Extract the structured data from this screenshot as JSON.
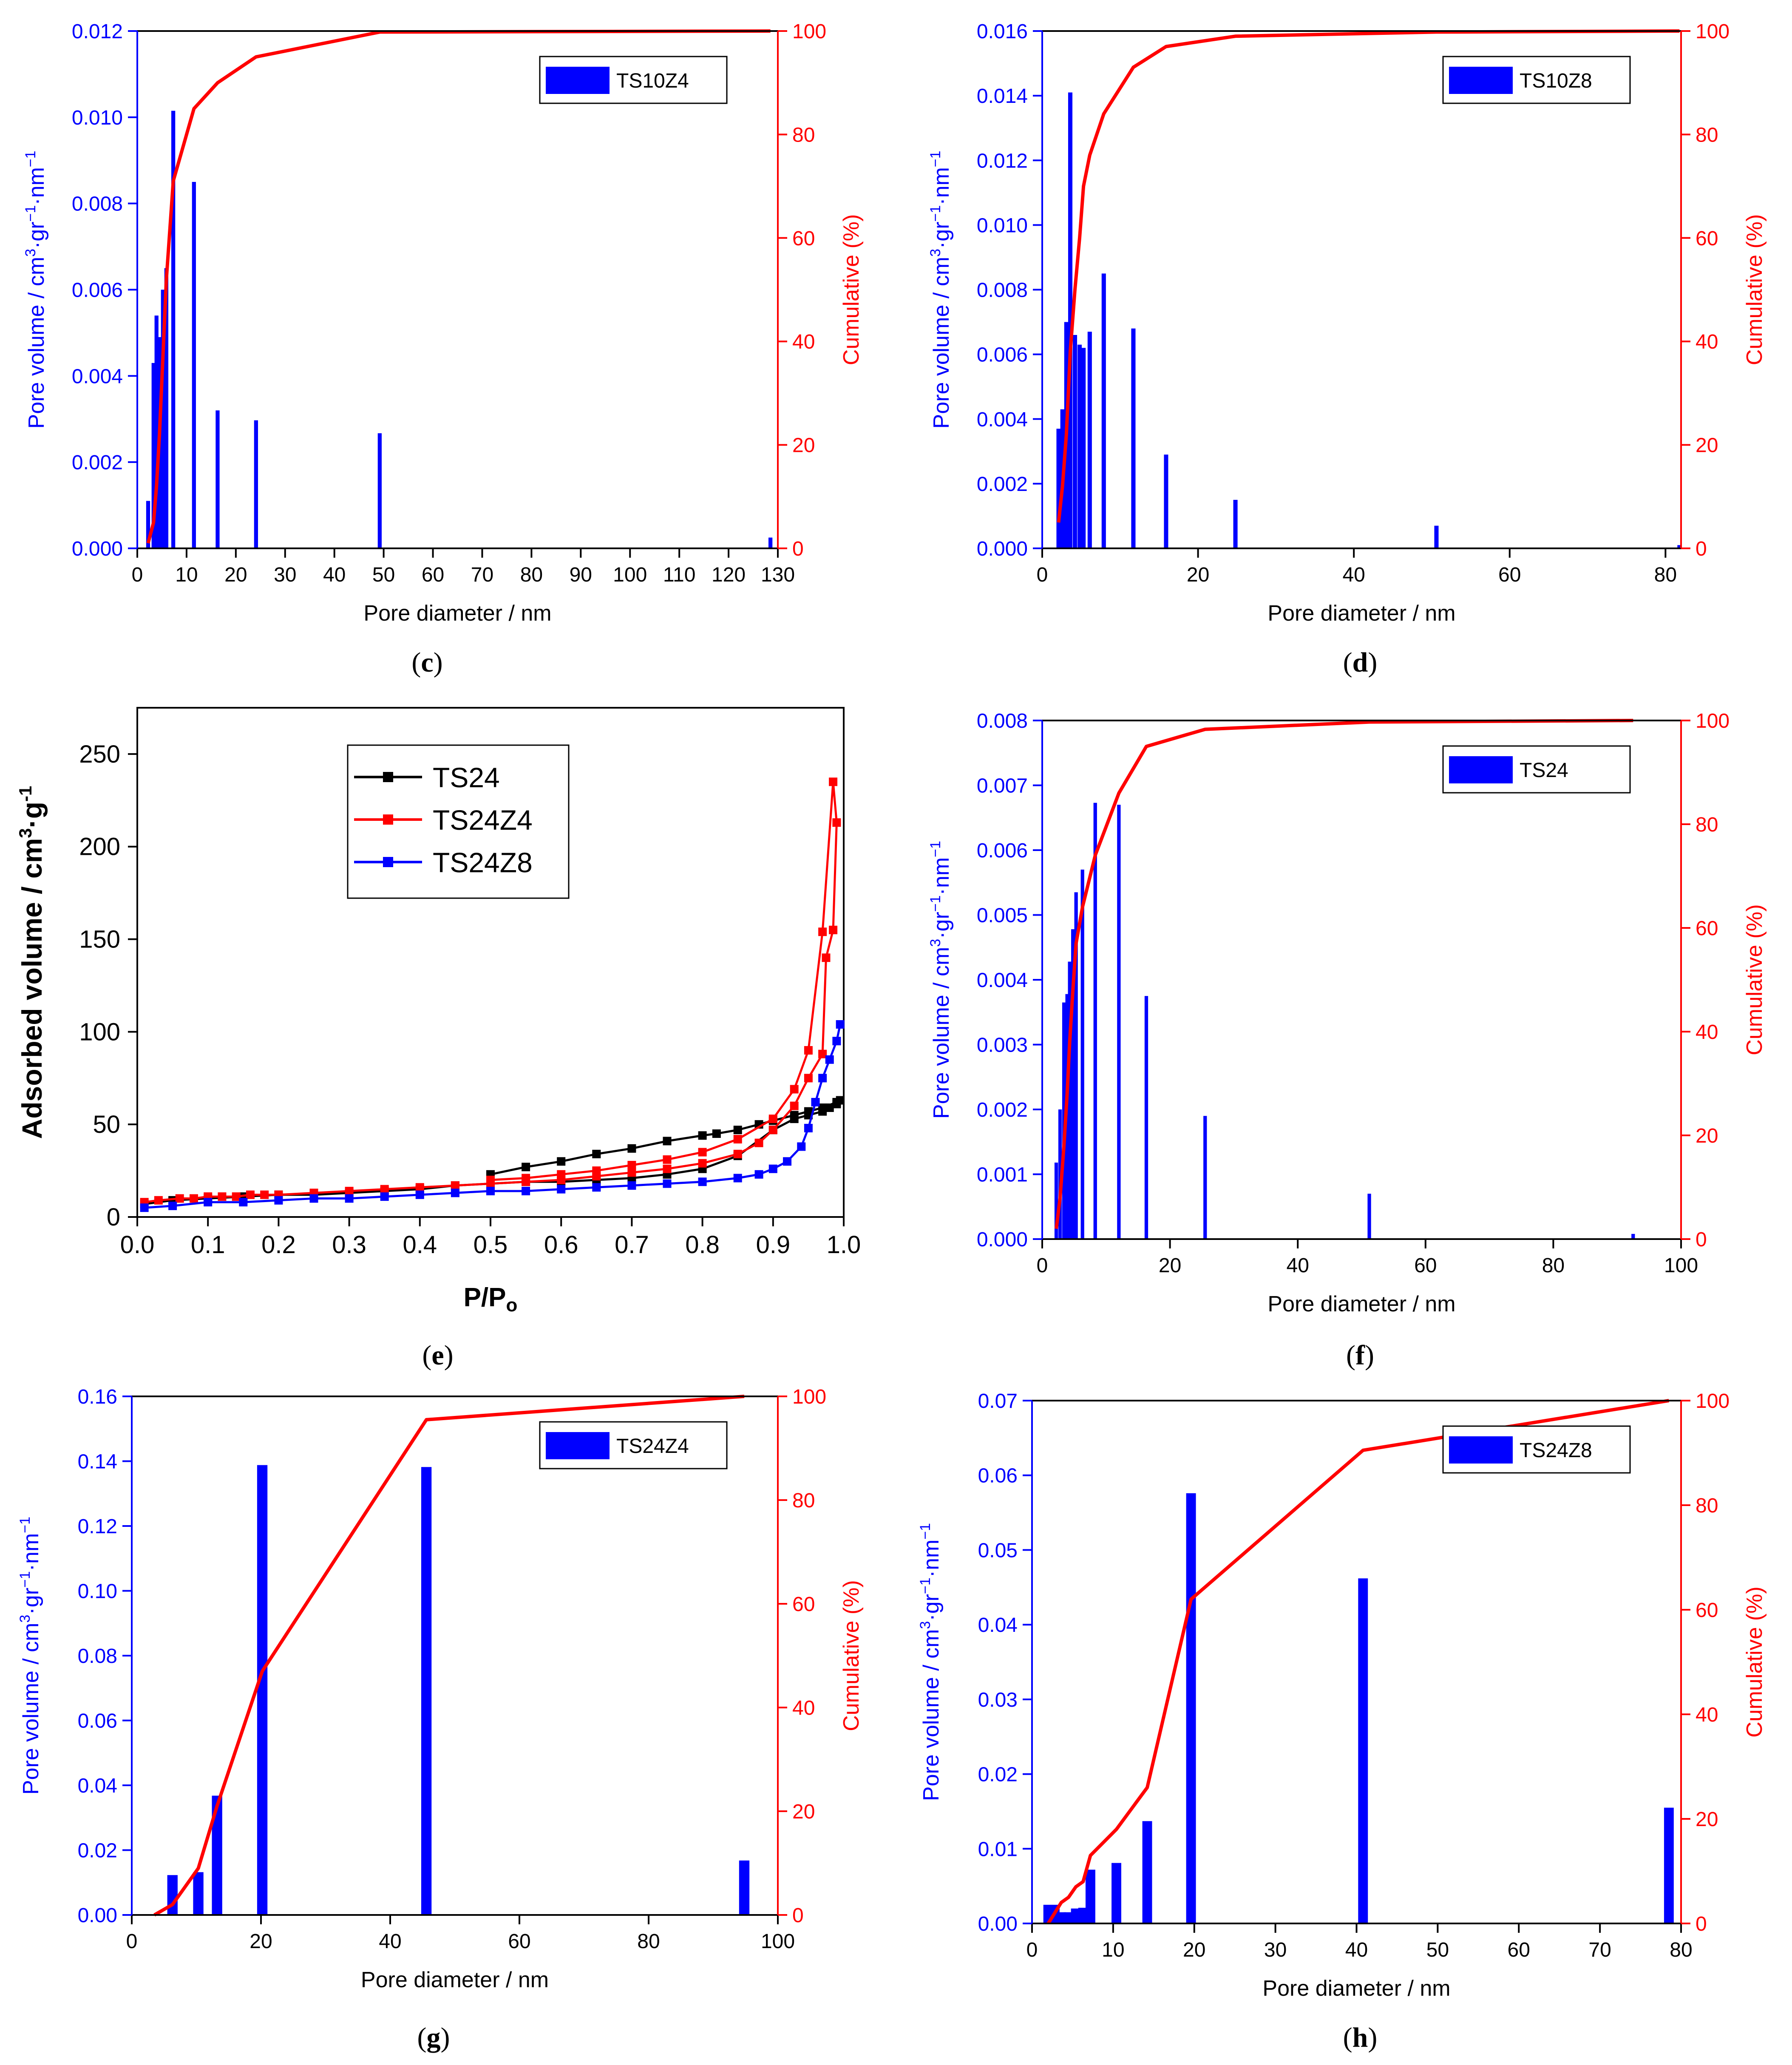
{
  "colors": {
    "bar": "#0000ff",
    "cumulative": "#ff0000",
    "axis": "#000000",
    "TS24": "#000000",
    "TS24Z4": "#ff0000",
    "TS24Z8": "#0000ff"
  },
  "chart_data": [
    {
      "id": "c",
      "type": "bar+line",
      "panel_label": "c",
      "legend": "TS10Z4",
      "xlabel": "Pore diameter / nm",
      "ylabel": {
        "base": "Pore volume / cm",
        "sup1": "3",
        "mid": "·gr",
        "sup2": "−1",
        "mid2": "·nm",
        "sup3": "−1"
      },
      "y2label": "Cumulative (%)",
      "xlim": [
        0,
        130
      ],
      "ylim": [
        0,
        0.012
      ],
      "y2lim": [
        0,
        100
      ],
      "xticks": [
        0,
        10,
        20,
        30,
        40,
        50,
        60,
        70,
        80,
        90,
        100,
        110,
        120,
        130
      ],
      "yticks": [
        0,
        0.002,
        0.004,
        0.006,
        0.008,
        0.01,
        0.012
      ],
      "ytick_labels": [
        "0.000",
        "0.002",
        "0.004",
        "0.006",
        "0.008",
        "0.010",
        "0.012"
      ],
      "y2ticks": [
        0,
        20,
        40,
        60,
        80,
        100
      ],
      "bar_width": 0.8,
      "bars": {
        "x": [
          2.2,
          3.3,
          3.9,
          4.5,
          5.2,
          5.9,
          7.3,
          11.5,
          16.3,
          24.1,
          49.2,
          128.5
        ],
        "values": [
          0.0011,
          0.0043,
          0.0054,
          0.0049,
          0.006,
          0.0065,
          0.01015,
          0.0085,
          0.0032,
          0.00297,
          0.00267,
          0.00025
        ]
      },
      "cumulative": {
        "x": [
          2.2,
          3.3,
          3.9,
          4.5,
          5.2,
          5.9,
          7.3,
          11.5,
          16.3,
          24.1,
          49.2,
          128.5
        ],
        "values": [
          1,
          5,
          12,
          22,
          37,
          52,
          71,
          85,
          90,
          95,
          99.8,
          100
        ]
      }
    },
    {
      "id": "d",
      "type": "bar+line",
      "panel_label": "d",
      "legend": "TS10Z8",
      "xlabel": "Pore diameter / nm",
      "ylabel": {
        "base": "Pore volume / cm",
        "sup1": "3",
        "mid": "·gr",
        "sup2": "−1",
        "mid2": "·nm",
        "sup3": "−1"
      },
      "y2label": "Cumulative (%)",
      "xlim": [
        0,
        82
      ],
      "ylim": [
        0,
        0.016
      ],
      "y2lim": [
        0,
        100
      ],
      "xticks": [
        0,
        20,
        40,
        60,
        80
      ],
      "yticks": [
        0,
        0.002,
        0.004,
        0.006,
        0.008,
        0.01,
        0.012,
        0.014,
        0.016
      ],
      "ytick_labels": [
        "0.000",
        "0.002",
        "0.004",
        "0.006",
        "0.008",
        "0.010",
        "0.012",
        "0.014",
        "0.016"
      ],
      "y2ticks": [
        0,
        20,
        40,
        60,
        80,
        100
      ],
      "bar_width": 0.55,
      "bars": {
        "x": [
          2.1,
          2.6,
          3.1,
          3.6,
          4.2,
          4.8,
          5.3,
          6.1,
          7.9,
          11.7,
          15.9,
          24.8,
          50.6,
          81.8
        ],
        "values": [
          0.0037,
          0.0043,
          0.007,
          0.0141,
          0.0066,
          0.0063,
          0.0062,
          0.0067,
          0.0085,
          0.0068,
          0.0029,
          0.0015,
          0.0007,
          0.0001
        ]
      },
      "cumulative": {
        "x": [
          2.1,
          2.6,
          3.1,
          3.6,
          4.2,
          4.8,
          5.3,
          6.1,
          7.9,
          11.7,
          15.9,
          24.8,
          50.6,
          81.8
        ],
        "values": [
          5,
          12,
          22,
          38,
          50,
          60,
          70,
          76,
          84,
          93,
          97,
          99,
          99.8,
          100
        ]
      }
    },
    {
      "id": "e",
      "type": "line",
      "panel_label": "e",
      "xlabel_main": "P/P",
      "xlabel_sub": "o",
      "ylabel_main": "Adsorbed volume / cm",
      "ylabel_sup": "3",
      "ylabel_tail": "·g",
      "ylabel_sup2": "-1",
      "xlim": [
        0,
        1.0
      ],
      "ylim": [
        0,
        275
      ],
      "xticks": [
        0,
        0.1,
        0.2,
        0.3,
        0.4,
        0.5,
        0.6,
        0.7,
        0.8,
        0.9,
        1.0
      ],
      "xtick_labels": [
        "0.0",
        "0.1",
        "0.2",
        "0.3",
        "0.4",
        "0.5",
        "0.6",
        "0.7",
        "0.8",
        "0.9",
        "1.0"
      ],
      "yticks": [
        0,
        50,
        100,
        150,
        200,
        250
      ],
      "series": [
        {
          "name": "TS24",
          "x": [
            0.01,
            0.05,
            0.1,
            0.15,
            0.2,
            0.25,
            0.3,
            0.35,
            0.4,
            0.45,
            0.5,
            0.55,
            0.6,
            0.65,
            0.7,
            0.75,
            0.8,
            0.85,
            0.9,
            0.93,
            0.95,
            0.97,
            0.98,
            0.99,
            0.995,
            0.99,
            0.97,
            0.95,
            0.93,
            0.9,
            0.88,
            0.85,
            0.82,
            0.8,
            0.75,
            0.7,
            0.65,
            0.6,
            0.55,
            0.5
          ],
          "y": [
            7,
            9,
            10,
            11,
            12,
            12,
            13,
            14,
            15,
            17,
            18,
            19,
            19,
            20,
            21,
            23,
            26,
            33,
            47,
            53,
            55,
            57,
            59,
            61,
            63,
            62,
            59,
            57,
            55,
            52,
            50,
            47,
            45,
            44,
            41,
            37,
            34,
            30,
            27,
            23
          ]
        },
        {
          "name": "TS24Z4",
          "x": [
            0.01,
            0.03,
            0.06,
            0.08,
            0.1,
            0.12,
            0.14,
            0.16,
            0.18,
            0.2,
            0.25,
            0.3,
            0.35,
            0.4,
            0.45,
            0.5,
            0.55,
            0.6,
            0.65,
            0.7,
            0.75,
            0.8,
            0.85,
            0.88,
            0.9,
            0.93,
            0.95,
            0.97,
            0.975,
            0.985,
            0.99,
            0.985,
            0.97,
            0.95,
            0.93,
            0.9,
            0.85,
            0.8,
            0.75,
            0.7,
            0.65,
            0.6,
            0.55,
            0.5
          ],
          "y": [
            8,
            9,
            10,
            10,
            11,
            11,
            11,
            12,
            12,
            12,
            13,
            14,
            15,
            16,
            17,
            18,
            19,
            20,
            22,
            24,
            26,
            29,
            34,
            40,
            47,
            60,
            75,
            88,
            140,
            155,
            213,
            235,
            154,
            90,
            69,
            53,
            42,
            35,
            31,
            28,
            25,
            23,
            21,
            20
          ]
        },
        {
          "name": "TS24Z8",
          "x": [
            0.01,
            0.05,
            0.1,
            0.15,
            0.2,
            0.25,
            0.3,
            0.35,
            0.4,
            0.45,
            0.5,
            0.55,
            0.6,
            0.65,
            0.7,
            0.75,
            0.8,
            0.85,
            0.88,
            0.9,
            0.92,
            0.94,
            0.95,
            0.96,
            0.97,
            0.98,
            0.99,
            0.995
          ],
          "y": [
            5,
            6,
            8,
            8,
            9,
            10,
            10,
            11,
            12,
            13,
            14,
            14,
            15,
            16,
            17,
            18,
            19,
            21,
            23,
            26,
            30,
            38,
            48,
            62,
            75,
            85,
            95,
            104
          ]
        }
      ]
    },
    {
      "id": "f",
      "type": "bar+line",
      "panel_label": "f",
      "legend": "TS24",
      "xlabel": "Pore diameter / nm",
      "ylabel": {
        "base": "Pore volume / cm",
        "sup1": "3",
        "mid": "·gr",
        "sup2": "−1",
        "mid2": "·nm",
        "sup3": "−1"
      },
      "y2label": "Cumulative (%)",
      "xlim": [
        0,
        100
      ],
      "ylim": [
        0,
        0.008
      ],
      "y2lim": [
        0,
        100
      ],
      "xticks": [
        0,
        20,
        40,
        60,
        80,
        100
      ],
      "yticks": [
        0,
        0.001,
        0.002,
        0.003,
        0.004,
        0.005,
        0.006,
        0.007,
        0.008
      ],
      "ytick_labels": [
        "0.000",
        "0.001",
        "0.002",
        "0.003",
        "0.004",
        "0.005",
        "0.006",
        "0.007",
        "0.008"
      ],
      "y2ticks": [
        0,
        20,
        40,
        60,
        80,
        100
      ],
      "bar_width": 0.55,
      "bars": {
        "x": [
          2.2,
          2.8,
          3.4,
          3.9,
          4.3,
          4.8,
          5.3,
          6.3,
          8.3,
          12.0,
          16.3,
          25.5,
          51.2,
          92.5
        ],
        "values": [
          0.00118,
          0.002,
          0.00365,
          0.00378,
          0.00428,
          0.00478,
          0.00535,
          0.0057,
          0.00673,
          0.0067,
          0.00375,
          0.0019,
          0.0007,
          8e-05
        ]
      },
      "cumulative": {
        "x": [
          2.2,
          2.8,
          3.4,
          3.9,
          4.3,
          4.8,
          5.3,
          6.3,
          8.3,
          12.0,
          16.3,
          25.5,
          51.2,
          92.5
        ],
        "values": [
          2,
          8,
          18,
          28,
          38,
          48,
          57,
          64,
          74,
          86,
          95,
          98.3,
          99.7,
          100
        ]
      }
    },
    {
      "id": "g",
      "type": "bar+line",
      "panel_label": "g",
      "legend": "TS24Z4",
      "xlabel": "Pore diameter / nm",
      "ylabel": {
        "base": "Pore volume / cm",
        "sup1": "3",
        "mid": "·gr",
        "sup2": "−1",
        "mid2": "·nm",
        "sup3": "−1"
      },
      "y2label": "Cumulative (%)",
      "xlim": [
        0,
        100
      ],
      "ylim": [
        0,
        0.16
      ],
      "y2lim": [
        0,
        100
      ],
      "xticks": [
        0,
        20,
        40,
        60,
        80,
        100
      ],
      "yticks": [
        0,
        0.02,
        0.04,
        0.06,
        0.08,
        0.1,
        0.12,
        0.14,
        0.16
      ],
      "ytick_labels": [
        "0.00",
        "0.02",
        "0.04",
        "0.06",
        "0.08",
        "0.10",
        "0.12",
        "0.14",
        "0.16"
      ],
      "y2ticks": [
        0,
        20,
        40,
        60,
        80,
        100
      ],
      "bar_width": 1.6,
      "bars": {
        "x": [
          6.3,
          10.3,
          13.2,
          20.2,
          45.6,
          94.8
        ],
        "values": [
          0.0123,
          0.0132,
          0.0368,
          0.1388,
          0.1382,
          0.0168
        ]
      },
      "cumulative": {
        "x": [
          3.5,
          6.3,
          10.3,
          13.2,
          20.2,
          45.6,
          94.8
        ],
        "values": [
          0,
          2,
          9,
          21,
          47,
          95.5,
          100
        ]
      }
    },
    {
      "id": "h",
      "type": "bar+line",
      "panel_label": "h",
      "legend": "TS24Z8",
      "xlabel": "Pore diameter / nm",
      "ylabel": {
        "base": "Pore volume / cm",
        "sup1": "3",
        "mid": "·gr",
        "sup2": "−1",
        "mid2": "·nm",
        "sup3": "−1"
      },
      "y2label": "Cumulative (%)",
      "xlim": [
        0,
        80
      ],
      "ylim": [
        0,
        0.07
      ],
      "y2lim": [
        0,
        100
      ],
      "xticks": [
        0,
        10,
        20,
        30,
        40,
        50,
        60,
        70,
        80
      ],
      "yticks": [
        0,
        0.01,
        0.02,
        0.03,
        0.04,
        0.05,
        0.06,
        0.07
      ],
      "ytick_labels": [
        "0.00",
        "0.01",
        "0.02",
        "0.03",
        "0.04",
        "0.05",
        "0.06",
        "0.07"
      ],
      "y2ticks": [
        0,
        20,
        40,
        60,
        80,
        100
      ],
      "bar_width": 1.2,
      "bars": {
        "x": [
          2.0,
          2.8,
          3.6,
          4.5,
          5.4,
          6.3,
          7.2,
          10.4,
          14.2,
          19.6,
          40.8,
          78.5
        ],
        "values": [
          0.0025,
          0.0025,
          0.0015,
          0.0015,
          0.002,
          0.0021,
          0.0072,
          0.0081,
          0.0137,
          0.0576,
          0.0462,
          0.0155
        ]
      },
      "cumulative": {
        "x": [
          2.0,
          2.8,
          3.6,
          4.5,
          5.4,
          6.3,
          7.2,
          10.4,
          14.2,
          19.6,
          40.8,
          78.5
        ],
        "values": [
          0,
          2,
          4,
          5,
          7,
          8,
          13,
          18,
          26,
          62,
          90.5,
          100
        ]
      }
    }
  ]
}
